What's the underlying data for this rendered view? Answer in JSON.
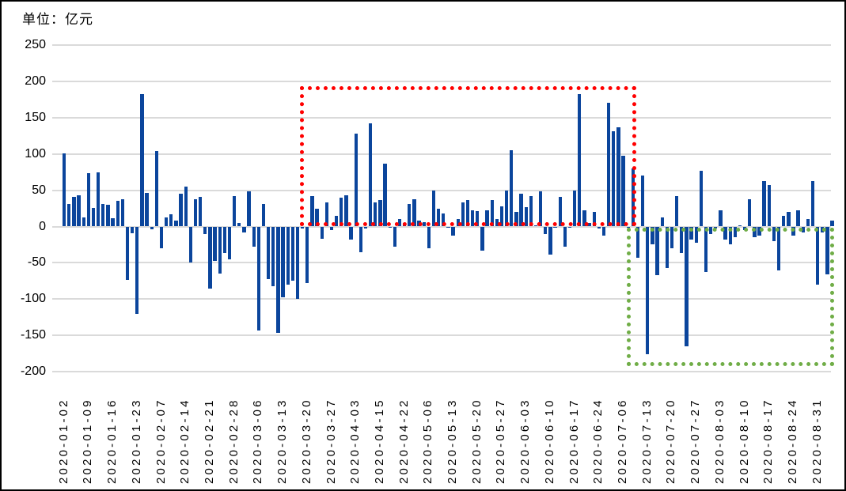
{
  "title": "单位：亿元",
  "chart_data": {
    "type": "bar",
    "title": "单位：亿元",
    "unit": "亿元",
    "ylim": [
      -200,
      250
    ],
    "ytick_interval": 50,
    "yticks": [
      250,
      200,
      150,
      100,
      50,
      0,
      -50,
      -100,
      -150,
      -200
    ],
    "grid": true,
    "legend": null,
    "bar_color": "#0B459C",
    "gridline_color": "#DADADA",
    "x_labels": [
      "2020-01-02",
      "2020-01-09",
      "2020-01-16",
      "2020-01-23",
      "2020-02-07",
      "2020-02-14",
      "2020-02-21",
      "2020-02-28",
      "2020-03-06",
      "2020-03-13",
      "2020-03-20",
      "2020-03-27",
      "2020-04-03",
      "2020-04-15",
      "2020-04-22",
      "2020-05-06",
      "2020-05-13",
      "2020-05-20",
      "2020-05-27",
      "2020-06-03",
      "2020-06-10",
      "2020-06-17",
      "2020-06-24",
      "2020-07-06",
      "2020-07-13",
      "2020-07-20",
      "2020-07-27",
      "2020-08-03",
      "2020-08-10",
      "2020-08-17",
      "2020-08-24",
      "2020-08-31"
    ],
    "bars_per_label": 5,
    "values": [
      101,
      31,
      41,
      43,
      12,
      74,
      26,
      75,
      31,
      30,
      11,
      35,
      38,
      -73,
      -9,
      -120,
      182,
      46,
      -4,
      104,
      -30,
      13,
      17,
      8,
      45,
      55,
      -50,
      38,
      41,
      -10,
      -85,
      -47,
      -65,
      -37,
      -45,
      42,
      5,
      -8,
      49,
      -28,
      -143,
      31,
      -72,
      -82,
      -147,
      -98,
      -80,
      -75,
      -100,
      -3,
      -78,
      42,
      24,
      -17,
      33,
      -5,
      15,
      40,
      43,
      -18,
      128,
      -35,
      -3,
      142,
      33,
      36,
      87,
      -2,
      -28,
      10,
      5,
      31,
      38,
      8,
      6,
      -30,
      50,
      25,
      18,
      -2,
      -12,
      10,
      33,
      36,
      22,
      21,
      -33,
      22,
      37,
      10,
      28,
      50,
      105,
      20,
      45,
      27,
      42,
      2,
      48,
      -10,
      -39,
      -2,
      41,
      -28,
      -2,
      50,
      182,
      22,
      5,
      20,
      -3,
      -12,
      171,
      131,
      137,
      98,
      -2,
      80,
      -43,
      70,
      -176,
      -25,
      -67,
      12,
      -57,
      -30,
      42,
      -37,
      -165,
      -18,
      -22,
      77,
      -63,
      -10,
      -3,
      22,
      -18,
      -25,
      -15,
      2,
      -5,
      38,
      -15,
      -12,
      63,
      57,
      -20,
      -61,
      15,
      20,
      -12,
      22,
      -8,
      10,
      63,
      -80,
      -8,
      -66,
      8
    ],
    "annotations": [
      {
        "name": "red-dotted-box",
        "shape": "rect",
        "style": "dotted",
        "color": "#FF0000",
        "x_from_label": "2020-03-20",
        "x_to_label": "2020-07-06",
        "bar_from": 49.7,
        "bar_to": 116.5,
        "value_from": 6,
        "value_to": 188
      },
      {
        "name": "green-dotted-box",
        "shape": "rect",
        "style": "dotted",
        "color": "#70AD47",
        "x_from_label": "2020-07-13",
        "x_to_label": "2020-08-31",
        "bar_from": 116.9,
        "bar_to": 157.3,
        "value_from": -187,
        "value_to": -7
      }
    ]
  }
}
